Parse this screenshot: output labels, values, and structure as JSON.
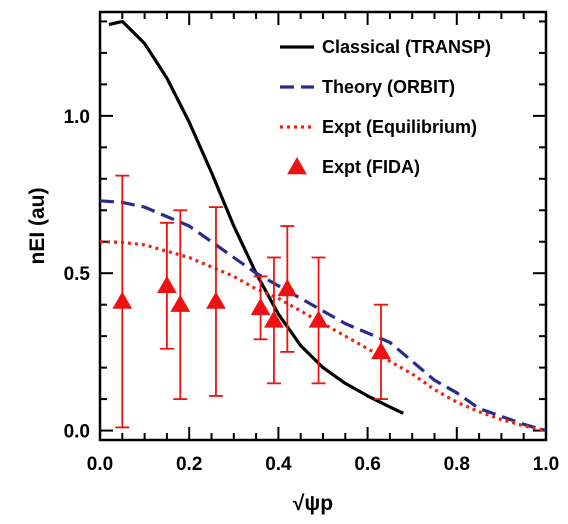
{
  "chart_data": {
    "type": "line",
    "xlabel": "√ψp",
    "ylabel": "nEI (au)",
    "xlim": [
      0.0,
      1.0
    ],
    "ylim": [
      -0.03,
      1.33
    ],
    "x_ticks": [
      {
        "value": 0.0,
        "label": "0.0"
      },
      {
        "value": 0.2,
        "label": "0.2"
      },
      {
        "value": 0.4,
        "label": "0.4"
      },
      {
        "value": 0.6,
        "label": "0.6"
      },
      {
        "value": 0.8,
        "label": "0.8"
      },
      {
        "value": 1.0,
        "label": "1.0"
      }
    ],
    "y_ticks": [
      {
        "value": 0.0,
        "label": "0.0"
      },
      {
        "value": 0.5,
        "label": "0.5"
      },
      {
        "value": 1.0,
        "label": "1.0"
      }
    ],
    "x_minor_step": 0.05,
    "y_minor_step": 0.1,
    "legend_position": "top-right",
    "series": [
      {
        "name": "Classical (TRANSP)",
        "style": "solid",
        "color": "#000000",
        "x": [
          0.02,
          0.05,
          0.1,
          0.15,
          0.2,
          0.25,
          0.3,
          0.35,
          0.4,
          0.45,
          0.5,
          0.55,
          0.6,
          0.65,
          0.68
        ],
        "y": [
          1.29,
          1.3,
          1.23,
          1.12,
          0.98,
          0.82,
          0.65,
          0.5,
          0.37,
          0.27,
          0.2,
          0.15,
          0.11,
          0.075,
          0.055
        ]
      },
      {
        "name": "Theory (ORBIT)",
        "style": "dashed",
        "color": "#2b2b8c",
        "x": [
          0.0,
          0.05,
          0.1,
          0.15,
          0.2,
          0.25,
          0.3,
          0.35,
          0.4,
          0.45,
          0.5,
          0.55,
          0.6,
          0.65,
          0.7,
          0.75,
          0.8,
          0.85,
          0.9,
          0.95,
          1.0
        ],
        "y": [
          0.73,
          0.725,
          0.71,
          0.68,
          0.65,
          0.6,
          0.55,
          0.5,
          0.46,
          0.42,
          0.38,
          0.34,
          0.31,
          0.28,
          0.22,
          0.16,
          0.12,
          0.07,
          0.045,
          0.02,
          0.0
        ]
      },
      {
        "name": "Expt (Equilibrium)",
        "style": "dotted",
        "color": "#ee2211",
        "x": [
          0.0,
          0.05,
          0.1,
          0.15,
          0.2,
          0.25,
          0.3,
          0.35,
          0.4,
          0.45,
          0.5,
          0.55,
          0.6,
          0.65,
          0.7,
          0.75,
          0.8,
          0.85,
          0.9,
          0.95,
          1.0
        ],
        "y": [
          0.6,
          0.598,
          0.59,
          0.57,
          0.55,
          0.52,
          0.49,
          0.45,
          0.42,
          0.38,
          0.34,
          0.3,
          0.26,
          0.22,
          0.18,
          0.13,
          0.09,
          0.06,
          0.035,
          0.015,
          0.0
        ]
      },
      {
        "name": "Expt (FIDA)",
        "style": "markers",
        "color": "#ee1111",
        "x": [
          0.05,
          0.15,
          0.18,
          0.26,
          0.36,
          0.39,
          0.42,
          0.49,
          0.63
        ],
        "y": [
          0.41,
          0.46,
          0.4,
          0.41,
          0.39,
          0.35,
          0.45,
          0.35,
          0.25
        ],
        "err_low": [
          0.01,
          0.26,
          0.1,
          0.11,
          0.29,
          0.15,
          0.25,
          0.15,
          0.1
        ],
        "err_high": [
          0.81,
          0.66,
          0.7,
          0.71,
          0.49,
          0.55,
          0.65,
          0.55,
          0.4
        ]
      }
    ]
  }
}
